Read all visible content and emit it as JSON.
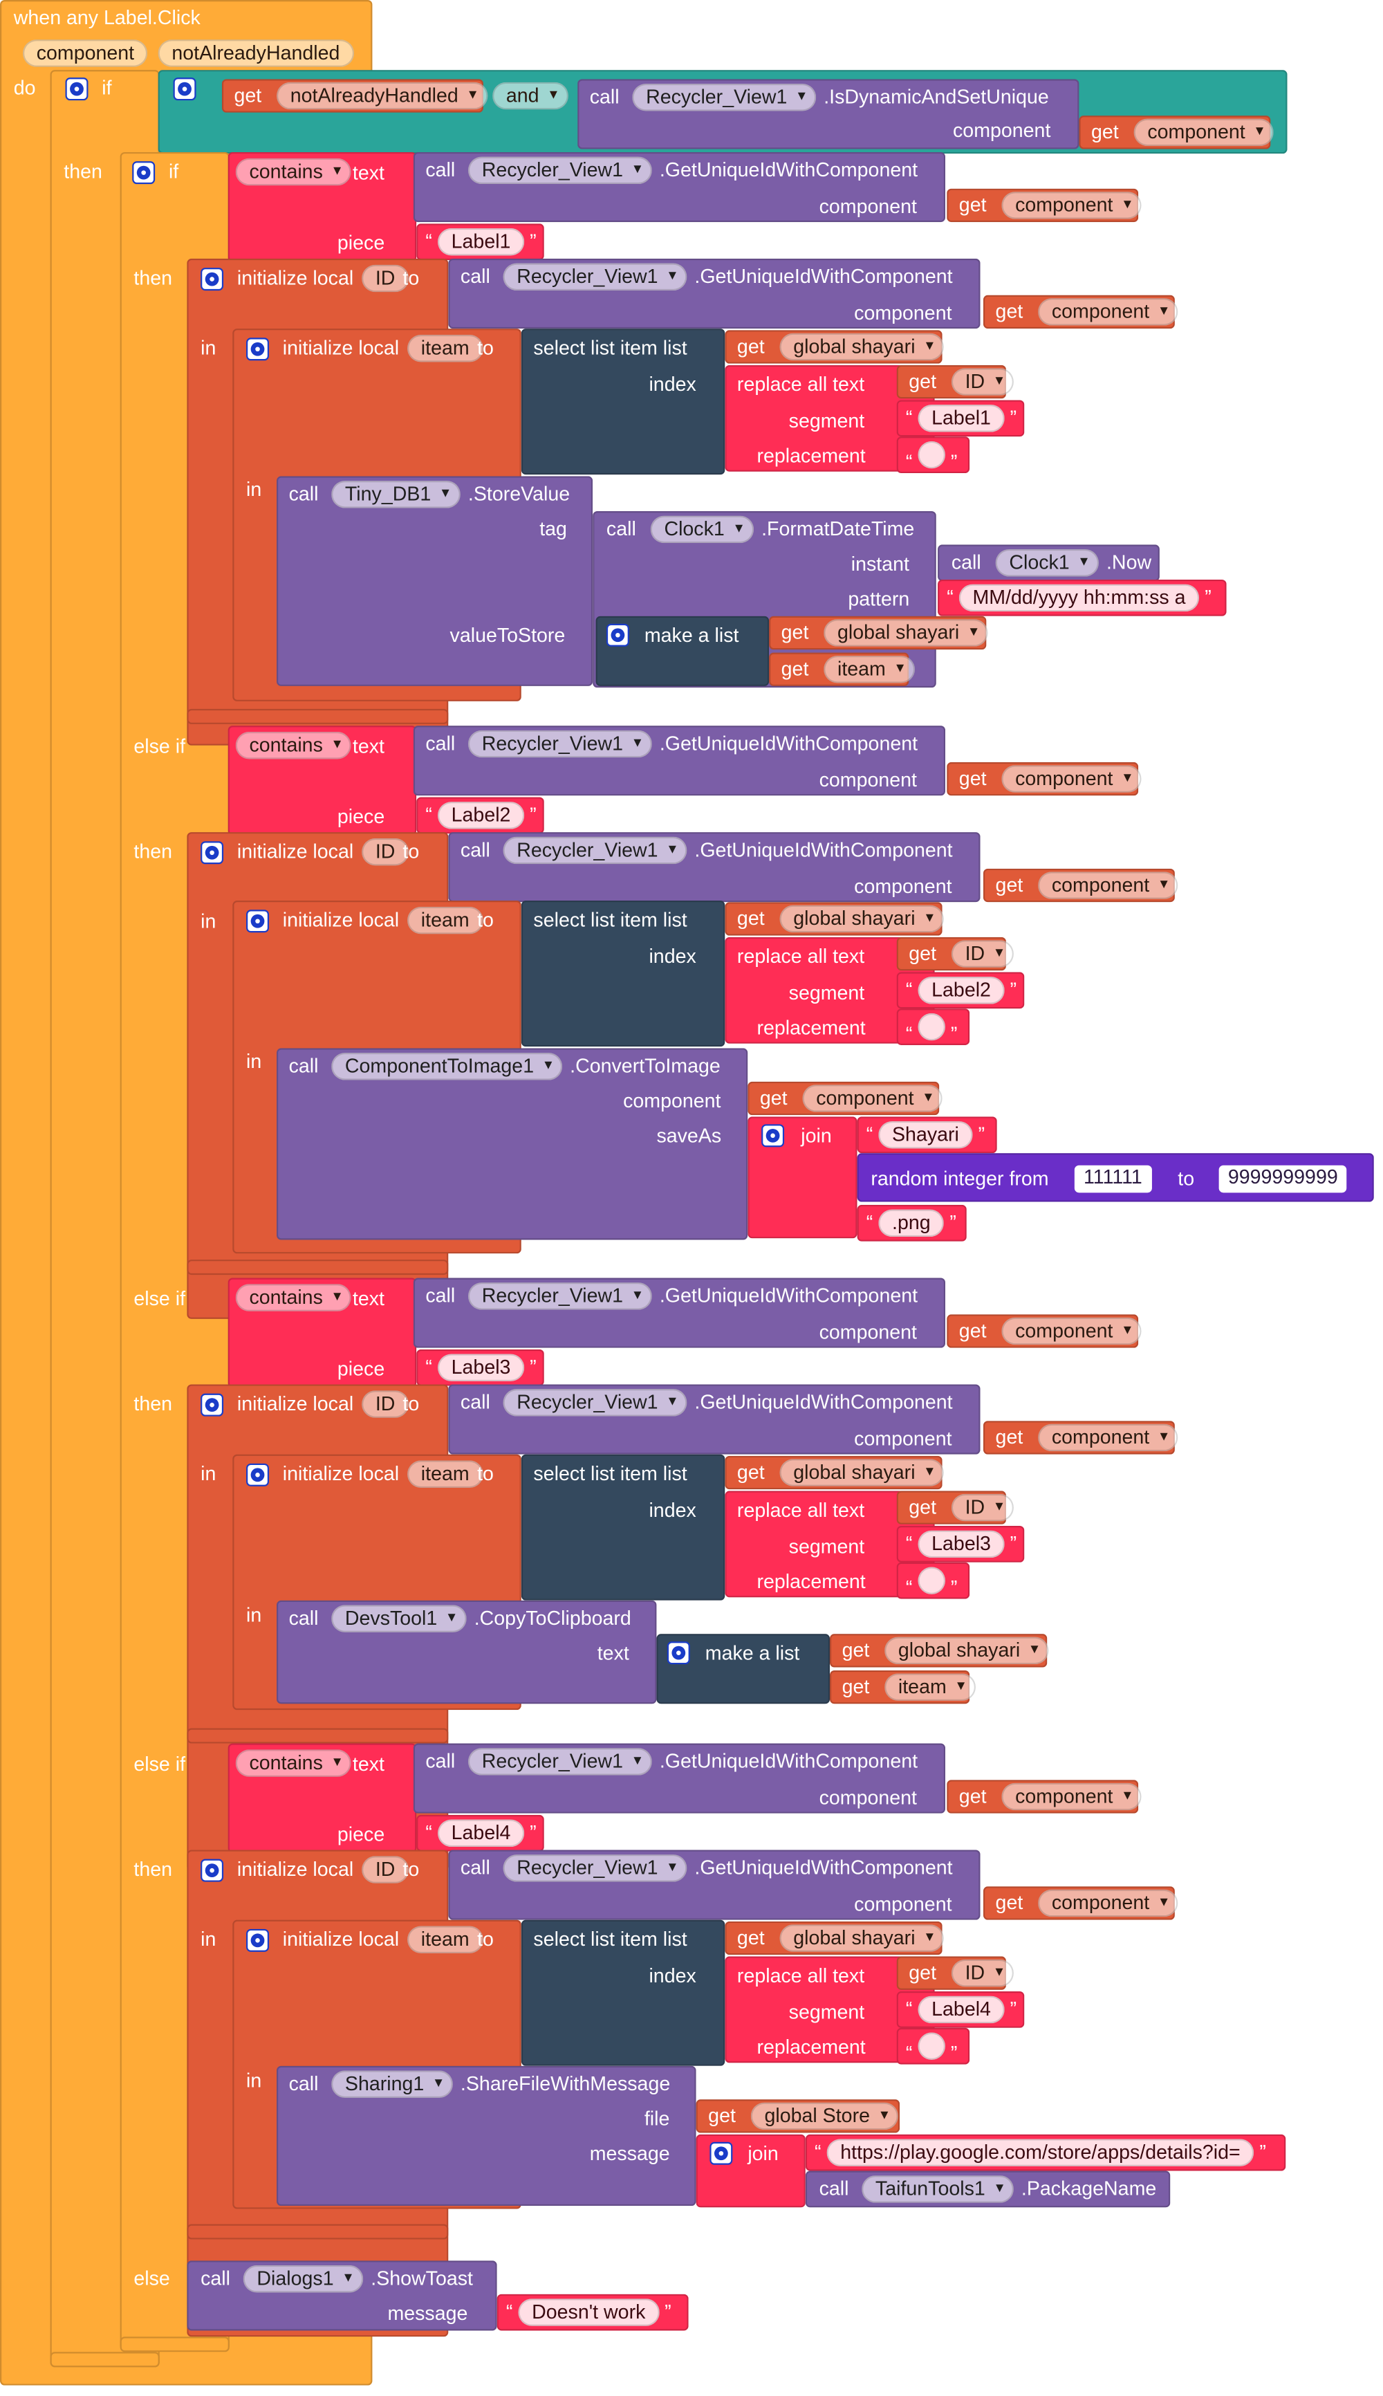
{
  "colors": {
    "event": "#ffab37",
    "control": "#ffab37",
    "variable": "#e05a38",
    "text": "#ff2d55",
    "procedure": "#7b5ea7",
    "list": "#34495e",
    "logic": "#2aa59a",
    "math": "#6a2ec8"
  },
  "labels": {
    "header": "when any Label.Click",
    "param_component": "component",
    "param_not_already_handled": "notAlreadyHandled",
    "do": "do",
    "if": "if",
    "then": "then",
    "else_if": "else if",
    "else": "else",
    "in": "in",
    "to": "to",
    "get": "get",
    "call": "call",
    "and": "and",
    "contains": "contains",
    "text": "text",
    "piece": "piece",
    "initialize_local": "initialize local",
    "select_list_item_list": "select list item  list",
    "index": "index",
    "replace_all_text": "replace all text",
    "segment": "segment",
    "replacement": "replacement",
    "tag": "tag",
    "instant": "instant",
    "pattern": "pattern",
    "value_to_store": "valueToStore",
    "make_a_list": "make a list",
    "component_arg": "component",
    "save_as": "saveAs",
    "join": "join",
    "random_integer_from": "random integer from",
    "file": "file",
    "message": "message"
  },
  "components": {
    "recycler": "Recycler_View1",
    "tinydb": "Tiny_DB1",
    "clock": "Clock1",
    "comp_to_image": "ComponentToImage1",
    "devs_tool": "DevsTool1",
    "sharing": "Sharing1",
    "taifun": "TaifunTools1",
    "dialogs": "Dialogs1"
  },
  "methods": {
    "is_dynamic": ".IsDynamicAndSetUnique",
    "get_unique_id": ".GetUniqueIdWithComponent",
    "store_value": ".StoreValue",
    "format_date_time": ".FormatDateTime",
    "now": ".Now",
    "convert_to_image": ".ConvertToImage",
    "copy_to_clipboard": ".CopyToClipboard",
    "share_file_with_message": ".ShareFileWithMessage",
    "package_name": ".PackageName",
    "show_toast": ".ShowToast"
  },
  "variables": {
    "not_already_handled": "notAlreadyHandled",
    "component": "component",
    "id": "ID",
    "iteam": "iteam",
    "global_shayari": "global shayari",
    "global_store": "global Store"
  },
  "strings": {
    "label1": "Label1",
    "label2": "Label2",
    "label3": "Label3",
    "label4": "Label4",
    "empty": "",
    "date_pattern": "MM/dd/yyyy hh:mm:ss a",
    "shayari": "Shayari",
    "png": ".png",
    "play_url": "https://play.google.com/store/apps/details?id=",
    "toast_message": "Doesn't work"
  },
  "numbers": {
    "random_from": "111111",
    "random_to": "9999999999"
  }
}
